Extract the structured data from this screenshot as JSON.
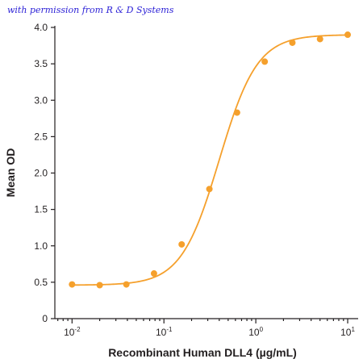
{
  "watermark": "with permission from R & D Systems",
  "chart_data": {
    "type": "scatter",
    "title": "",
    "xlabel": "Recombinant Human DLL4 (µg/mL)",
    "ylabel": "Mean OD",
    "xscale": "log",
    "xlim": [
      0.0065,
      13
    ],
    "ylim": [
      0,
      4.0
    ],
    "x_ticks": [
      {
        "value": 0.01,
        "base": "10",
        "exp": "-2"
      },
      {
        "value": 0.1,
        "base": "10",
        "exp": "-1"
      },
      {
        "value": 1,
        "base": "10",
        "exp": "0"
      },
      {
        "value": 10,
        "base": "10",
        "exp": "1"
      }
    ],
    "y_ticks": [
      "0",
      "0.5",
      "1.0",
      "1.5",
      "2.0",
      "2.5",
      "3.0",
      "3.5",
      "4.0"
    ],
    "grid": false,
    "color": "#f5a02c",
    "series": [
      {
        "x": [
          0.01,
          0.02,
          0.039,
          0.078,
          0.156,
          0.3125,
          0.625,
          1.25,
          2.5,
          5,
          10
        ],
        "y": [
          0.47,
          0.46,
          0.47,
          0.62,
          1.02,
          1.78,
          2.83,
          3.53,
          3.79,
          3.84,
          3.9
        ]
      }
    ],
    "fit": {
      "bottom": 0.46,
      "top": 3.9,
      "ec50": 0.4,
      "hill": 2.1
    }
  }
}
